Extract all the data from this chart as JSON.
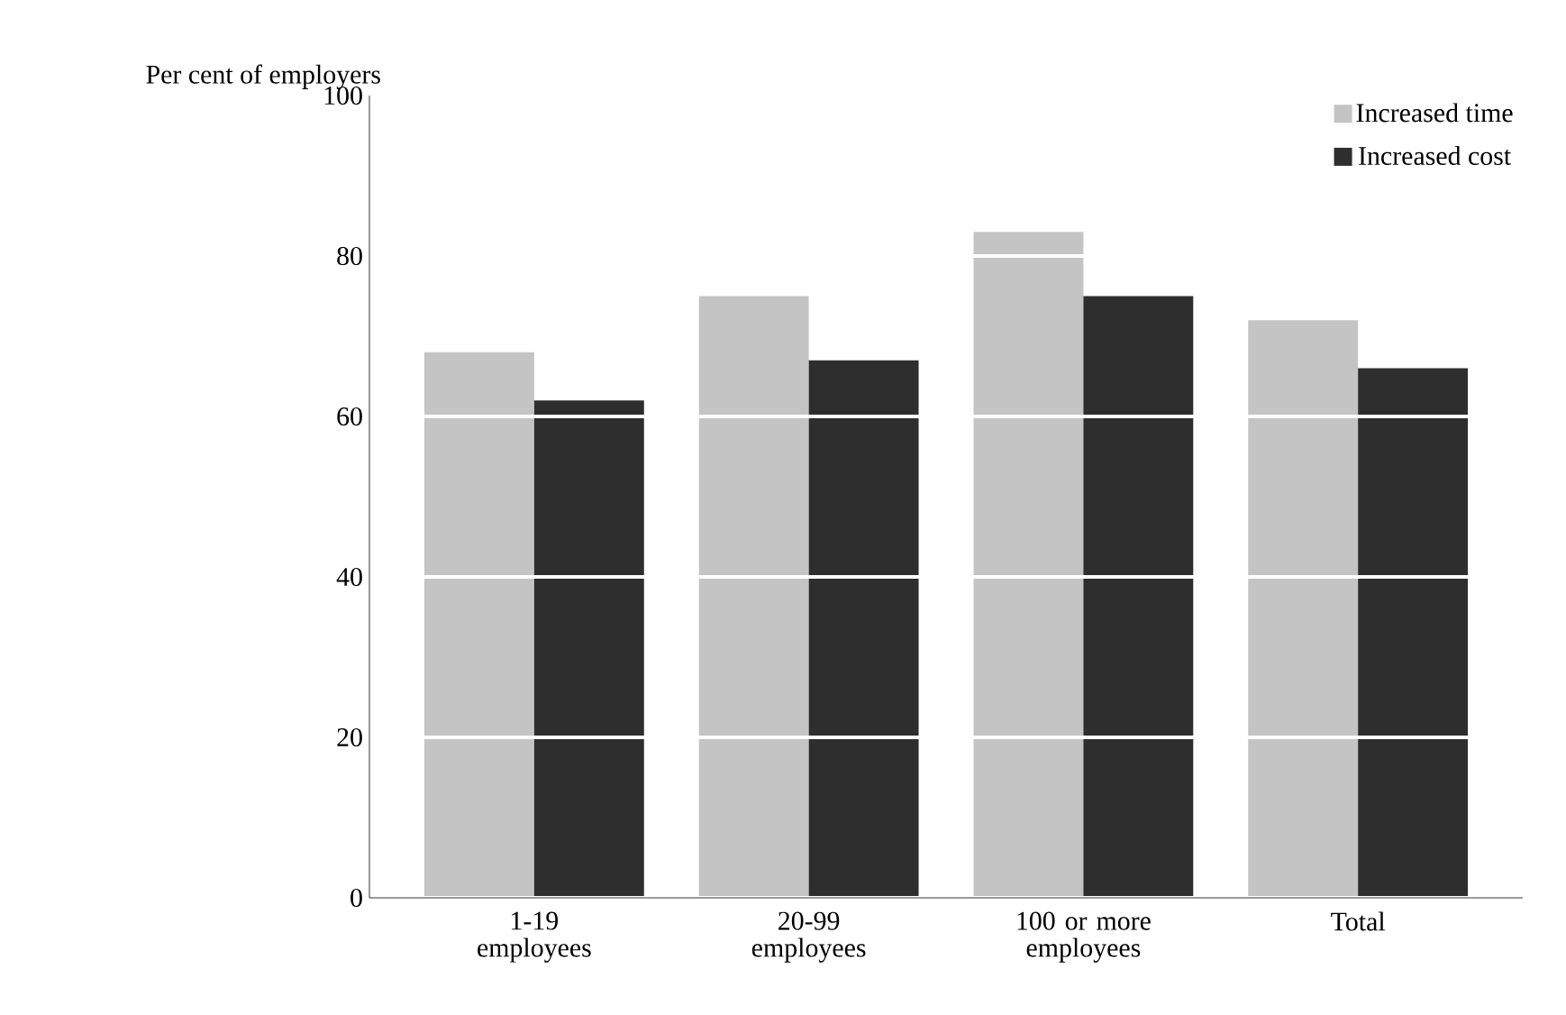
{
  "chart_data": {
    "type": "bar",
    "ylabel": "Per cent of employers",
    "categories": [
      "1-19 employees",
      "20-99 employees",
      "100 or more employees",
      "Total"
    ],
    "series": [
      {
        "name": "Increased time",
        "color": "#c4c4c4",
        "values": [
          68,
          75,
          83,
          72
        ]
      },
      {
        "name": "Increased cost",
        "color": "#2e2e2e",
        "values": [
          62,
          67,
          75,
          66
        ]
      }
    ],
    "ylim": [
      0,
      100
    ],
    "yticks": [
      0,
      20,
      40,
      60,
      80,
      100
    ],
    "grid": "y",
    "legend": "top right"
  }
}
